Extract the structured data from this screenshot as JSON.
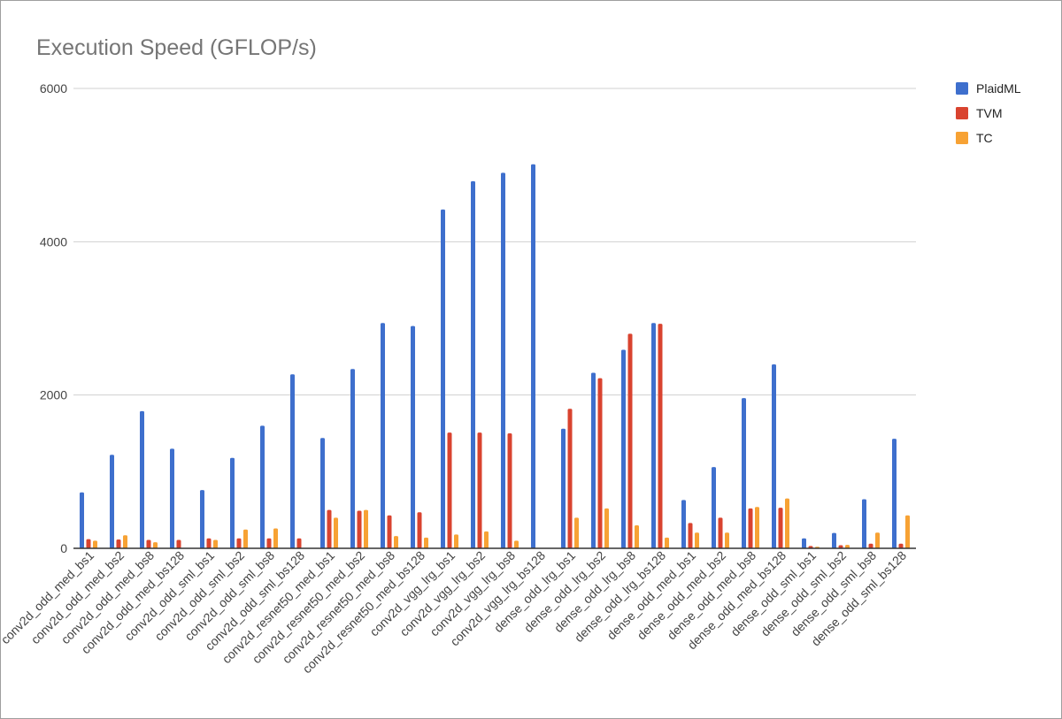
{
  "chart_data": {
    "type": "bar",
    "title": "Execution Speed (GFLOP/s)",
    "xlabel": "",
    "ylabel": "",
    "ylim": [
      0,
      6000
    ],
    "yticks": [
      0,
      2000,
      4000,
      6000
    ],
    "yticks_labels": [
      "0",
      "2000",
      "4000",
      "6000"
    ],
    "grid": true,
    "legend_position": "right-top",
    "categories": [
      "conv2d_odd_med_bs1",
      "conv2d_odd_med_bs2",
      "conv2d_odd_med_bs8",
      "conv2d_odd_med_bs128",
      "conv2d_odd_sml_bs1",
      "conv2d_odd_sml_bs2",
      "conv2d_odd_sml_bs8",
      "conv2d_odd_sml_bs128",
      "conv2d_resnet50_med_bs1",
      "conv2d_resnet50_med_bs2",
      "conv2d_resnet50_med_bs8",
      "conv2d_resnet50_med_bs128",
      "conv2d_vgg_lrg_bs1",
      "conv2d_vgg_lrg_bs2",
      "conv2d_vgg_lrg_bs8",
      "conv2d_vgg_lrg_bs128",
      "dense_odd_lrg_bs1",
      "dense_odd_lrg_bs2",
      "dense_odd_lrg_bs8",
      "dense_odd_lrg_bs128",
      "dense_odd_med_bs1",
      "dense_odd_med_bs2",
      "dense_odd_med_bs8",
      "dense_odd_med_bs128",
      "dense_odd_sml_bs1",
      "dense_odd_sml_bs2",
      "dense_odd_sml_bs8",
      "dense_odd_sml_bs128"
    ],
    "series": [
      {
        "name": "PlaidML",
        "color": "#3e6fcd",
        "values": [
          730,
          1220,
          1790,
          1300,
          760,
          1180,
          1600,
          2270,
          1440,
          2340,
          2940,
          2900,
          4420,
          4790,
          4900,
          5010,
          1560,
          2290,
          2590,
          2940,
          630,
          1060,
          1960,
          2400,
          130,
          200,
          640,
          1430
        ]
      },
      {
        "name": "TVM",
        "color": "#d9432f",
        "values": [
          120,
          115,
          110,
          110,
          130,
          130,
          130,
          130,
          500,
          490,
          430,
          470,
          1510,
          1510,
          1500,
          0,
          1820,
          2220,
          2800,
          2930,
          330,
          400,
          520,
          530,
          30,
          40,
          60,
          60
        ]
      },
      {
        "name": "TC",
        "color": "#f7a234",
        "values": [
          100,
          170,
          80,
          0,
          110,
          245,
          260,
          0,
          400,
          500,
          160,
          140,
          180,
          220,
          100,
          0,
          400,
          520,
          300,
          140,
          205,
          205,
          540,
          650,
          20,
          45,
          205,
          430
        ]
      }
    ]
  }
}
